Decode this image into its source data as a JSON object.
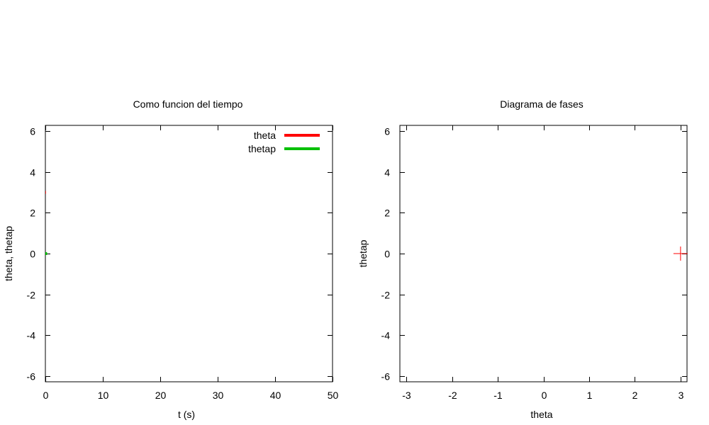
{
  "chart_data": [
    {
      "type": "line",
      "title": "Como funcion del tiempo",
      "xlabel": "t (s)",
      "ylabel": "theta, thetap",
      "xlim": [
        0,
        50
      ],
      "ylim": [
        -6.283,
        6.283
      ],
      "xticks": [
        0,
        10,
        20,
        30,
        40,
        50
      ],
      "yticks": [
        -6,
        -4,
        -2,
        0,
        2,
        4,
        6
      ],
      "legend_position": "top-right",
      "grid": false,
      "series": [
        {
          "name": "theta",
          "color": "#ff0000",
          "x": [
            0,
            0.1
          ],
          "y": [
            3.0,
            3.0
          ]
        },
        {
          "name": "thetap",
          "color": "#00c000",
          "x": [
            0,
            0.3
          ],
          "y": [
            0.0,
            0.0
          ]
        }
      ]
    },
    {
      "type": "scatter",
      "title": "Diagrama de fases",
      "xlabel": "theta",
      "ylabel": "thetap",
      "xlim": [
        -3.1416,
        3.1416
      ],
      "ylim": [
        -6.283,
        6.283
      ],
      "xticks": [
        -3,
        -2,
        -1,
        0,
        1,
        2,
        3
      ],
      "yticks": [
        -6,
        -4,
        -2,
        0,
        2,
        4,
        6
      ],
      "grid": false,
      "marker": "plus",
      "series": [
        {
          "color": "#ff0000",
          "x": [
            3.0
          ],
          "y": [
            0.0
          ]
        }
      ]
    }
  ]
}
